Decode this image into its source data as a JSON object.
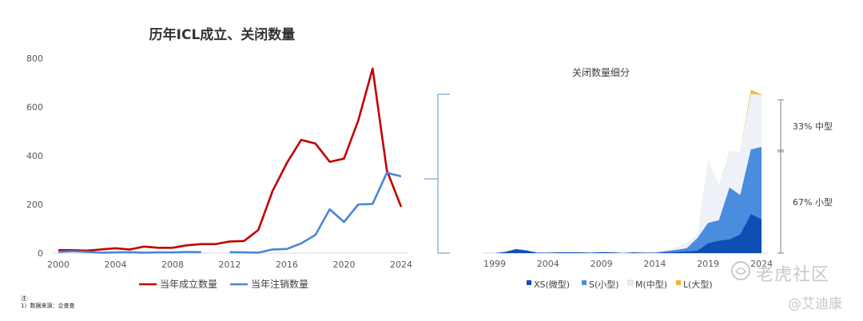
{
  "chart_data": [
    {
      "type": "line",
      "title": "历年ICL成立、关闭数量",
      "xlabel": "",
      "ylabel": "",
      "xlim": [
        2000,
        2024
      ],
      "ylim": [
        0,
        800
      ],
      "xticks": [
        2000,
        2004,
        2008,
        2012,
        2016,
        2020,
        2024
      ],
      "yticks": [
        0,
        200,
        400,
        600,
        800
      ],
      "grid": false,
      "legend_position": "bottom",
      "series": [
        {
          "name": "当年成立数量",
          "color": "#c00000",
          "points": [
            [
              2000,
              12
            ],
            [
              2001,
              12
            ],
            [
              2002,
              10
            ],
            [
              2003,
              15
            ],
            [
              2004,
              20
            ],
            [
              2005,
              15
            ],
            [
              2006,
              27
            ],
            [
              2007,
              22
            ],
            [
              2008,
              22
            ],
            [
              2009,
              32
            ],
            [
              2010,
              37
            ],
            [
              2011,
              37
            ],
            [
              2012,
              48
            ],
            [
              2013,
              50
            ],
            [
              2014,
              95
            ],
            [
              2015,
              255
            ],
            [
              2016,
              370
            ],
            [
              2017,
              465
            ],
            [
              2018,
              450
            ],
            [
              2019,
              375
            ],
            [
              2020,
              388
            ],
            [
              2021,
              545
            ],
            [
              2022,
              758
            ],
            [
              2023,
              340
            ],
            [
              2024,
              190
            ]
          ]
        },
        {
          "name": "当年注销数量",
          "color": "#4a86d8",
          "segments": [
            [
              [
                2000,
                5
              ],
              [
                2001,
                8
              ],
              [
                2002,
                5
              ],
              [
                2003,
                2
              ],
              [
                2004,
                3
              ],
              [
                2005,
                4
              ],
              [
                2006,
                2
              ],
              [
                2007,
                3
              ],
              [
                2008,
                3
              ],
              [
                2009,
                5
              ],
              [
                2010,
                4
              ]
            ],
            [
              [
                2012,
                4
              ],
              [
                2013,
                3
              ],
              [
                2014,
                2
              ],
              [
                2015,
                15
              ],
              [
                2016,
                17
              ],
              [
                2017,
                40
              ],
              [
                2018,
                75
              ],
              [
                2019,
                180
              ],
              [
                2020,
                128
              ],
              [
                2021,
                200
              ],
              [
                2022,
                202
              ],
              [
                2023,
                330
              ],
              [
                2024,
                315
              ]
            ]
          ]
        }
      ]
    },
    {
      "type": "area",
      "title": "关闭数量细分",
      "xlim": [
        1999,
        2024
      ],
      "ylim": [
        0,
        650
      ],
      "xticks": [
        1999,
        2004,
        2009,
        2014,
        2019,
        2024
      ],
      "xtick_labels": [
        "1999",
        "2004",
        "2009",
        "2014",
        "2019",
        "2024"
      ],
      "legend_position": "bottom",
      "stacked": true,
      "years": [
        1999,
        2000,
        2001,
        2002,
        2003,
        2004,
        2005,
        2006,
        2007,
        2008,
        2009,
        2010,
        2011,
        2012,
        2013,
        2014,
        2015,
        2016,
        2017,
        2018,
        2019,
        2020,
        2021,
        2022,
        2023,
        2024
      ],
      "series": [
        {
          "name": "XS(微型)",
          "color": "#0f4fb5",
          "values": [
            0,
            5,
            15,
            10,
            2,
            2,
            3,
            3,
            3,
            2,
            4,
            3,
            1,
            3,
            2,
            2,
            3,
            5,
            8,
            10,
            40,
            50,
            55,
            75,
            155,
            135
          ]
        },
        {
          "name": "S(小型)",
          "color": "#4a8cde",
          "values": [
            0,
            0,
            2,
            1,
            0,
            0,
            0,
            0,
            0,
            0,
            0,
            0,
            0,
            0,
            0,
            0,
            5,
            8,
            12,
            50,
            80,
            80,
            205,
            155,
            255,
            285
          ]
        },
        {
          "name": "M(中型)",
          "color": "#eef1f7",
          "values": [
            0,
            0,
            0,
            0,
            0,
            0,
            0,
            0,
            0,
            0,
            0,
            0,
            0,
            0,
            0,
            0,
            5,
            9,
            20,
            15,
            250,
            140,
            145,
            170,
            220,
            205
          ]
        },
        {
          "name": "L(大型)",
          "color": "#f3b42b",
          "values": [
            0,
            0,
            0,
            0,
            0,
            0,
            0,
            0,
            0,
            0,
            0,
            0,
            0,
            0,
            0,
            0,
            0,
            0,
            0,
            0,
            0,
            0,
            0,
            0,
            15,
            3
          ]
        }
      ],
      "annotations": [
        "33% 中型",
        "67% 小型"
      ]
    }
  ],
  "footnote": {
    "line1": "注:",
    "line2": "1）数据来源：企查查"
  },
  "watermark": {
    "brand": "老虎社区",
    "author": "@艾迪康"
  }
}
